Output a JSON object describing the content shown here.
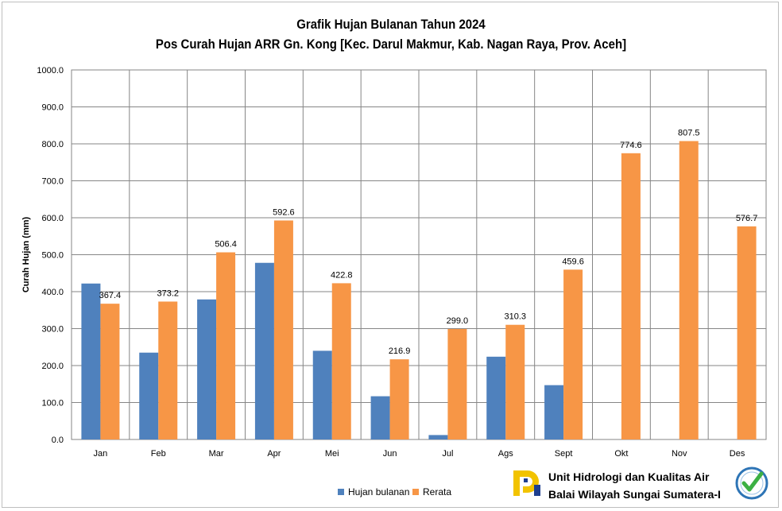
{
  "chart_data": {
    "type": "bar",
    "title": "Grafik Hujan Bulanan Tahun 2024",
    "subtitle": "Pos Curah Hujan ARR  Gn. Kong [Kec. Darul Makmur, Kab. Nagan Raya, Prov. Aceh]",
    "xlabel": "",
    "ylabel": "Curah Hujan (mm)",
    "ylim": [
      0,
      1000
    ],
    "yticks": [
      "0.0",
      "100.0",
      "200.0",
      "300.0",
      "400.0",
      "500.0",
      "600.0",
      "700.0",
      "800.0",
      "900.0",
      "1000.0"
    ],
    "categories": [
      "Jan",
      "Feb",
      "Mar",
      "Apr",
      "Mei",
      "Jun",
      "Jul",
      "Ags",
      "Sept",
      "Okt",
      "Nov",
      "Des"
    ],
    "grid": true,
    "legend_position": "bottom",
    "series": [
      {
        "name": "Hujan bulanan",
        "color": "#4f81bd",
        "values": [
          422,
          235,
          379,
          478,
          240,
          117,
          12,
          224,
          147,
          null,
          null,
          null
        ]
      },
      {
        "name": "Rerata",
        "color": "#f79646",
        "values": [
          367.4,
          373.2,
          506.4,
          592.6,
          422.8,
          216.9,
          299.0,
          310.3,
          459.6,
          774.6,
          807.5,
          576.7
        ],
        "labels": [
          "367.4",
          "373.2",
          "506.4",
          "592.6",
          "422.8",
          "216.9",
          "299.0",
          "310.3",
          "459.6",
          "774.6",
          "807.5",
          "576.7"
        ]
      }
    ]
  },
  "footer": {
    "line1": "Unit Hidrologi dan Kualitas Air",
    "line2": "Balai Wilayah Sungai Sumatera-I",
    "logo": "pu-logo-icon",
    "badge": "certified-badge-icon"
  }
}
